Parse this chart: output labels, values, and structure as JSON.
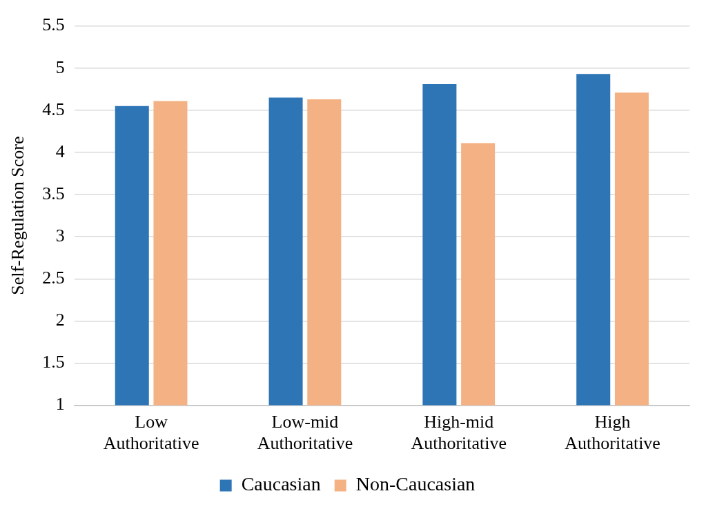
{
  "chart_data": {
    "type": "bar",
    "ylabel": "Self-Regulation Score",
    "categories": [
      "Low Authoritative",
      "Low-mid Authoritative",
      "High-mid Authoritative",
      "High Authoritative"
    ],
    "series": [
      {
        "name": "Caucasian",
        "color": "#2e75b6",
        "values": [
          4.55,
          4.65,
          4.81,
          4.93
        ]
      },
      {
        "name": "Non-Caucasian",
        "color": "#f4b183",
        "values": [
          4.61,
          4.63,
          4.11,
          4.71
        ]
      }
    ],
    "ylim": [
      1,
      5.5
    ],
    "yticks": [
      1,
      1.5,
      2,
      2.5,
      3,
      3.5,
      4,
      4.5,
      5,
      5.5
    ],
    "grid": "y",
    "legend": "bottom"
  }
}
